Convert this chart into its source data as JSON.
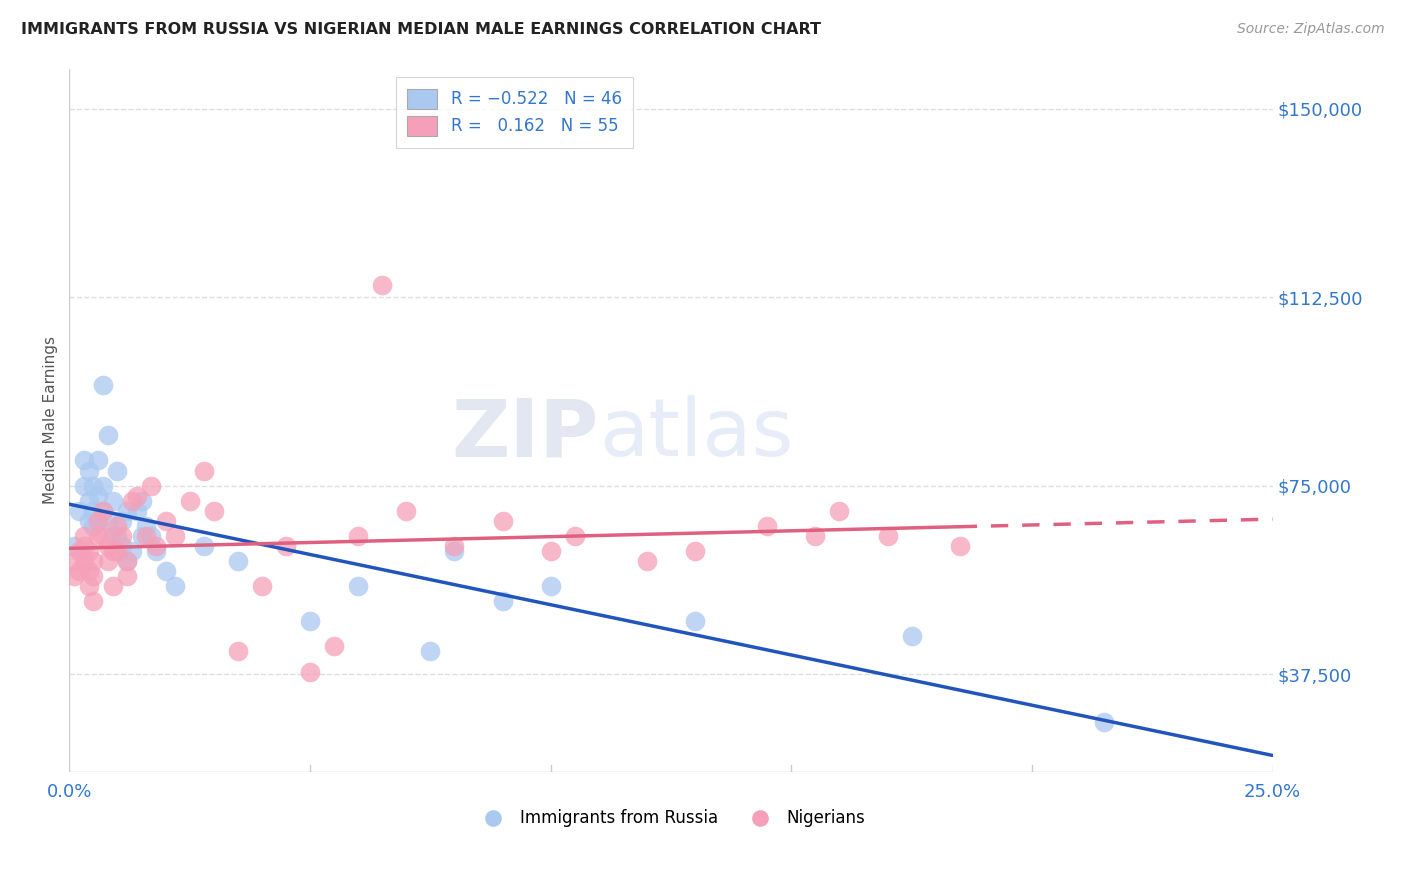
{
  "title": "IMMIGRANTS FROM RUSSIA VS NIGERIAN MEDIAN MALE EARNINGS CORRELATION CHART",
  "source": "Source: ZipAtlas.com",
  "ylabel": "Median Male Earnings",
  "ytick_labels": [
    "$37,500",
    "$75,000",
    "$112,500",
    "$150,000"
  ],
  "ytick_values": [
    37500,
    75000,
    112500,
    150000
  ],
  "xmin": 0.0,
  "xmax": 0.25,
  "ymin": 18000,
  "ymax": 158000,
  "legend_label1": "Immigrants from Russia",
  "legend_label2": "Nigerians",
  "blue_color": "#aac8f0",
  "pink_color": "#f5a0b8",
  "blue_line_color": "#2255bb",
  "pink_line_color": "#e06080",
  "title_color": "#222222",
  "axis_label_color": "#3377cc",
  "background_color": "#ffffff",
  "grid_color": "#dddddd",
  "russia_x": [
    0.001,
    0.002,
    0.003,
    0.003,
    0.004,
    0.004,
    0.004,
    0.005,
    0.005,
    0.005,
    0.006,
    0.006,
    0.006,
    0.007,
    0.007,
    0.007,
    0.008,
    0.008,
    0.009,
    0.009,
    0.01,
    0.01,
    0.011,
    0.011,
    0.012,
    0.012,
    0.013,
    0.014,
    0.015,
    0.015,
    0.016,
    0.017,
    0.018,
    0.02,
    0.022,
    0.028,
    0.035,
    0.05,
    0.06,
    0.075,
    0.08,
    0.09,
    0.1,
    0.13,
    0.175,
    0.215
  ],
  "russia_y": [
    63000,
    70000,
    75000,
    80000,
    72000,
    78000,
    68000,
    75000,
    70000,
    67000,
    73000,
    80000,
    68000,
    95000,
    75000,
    70000,
    85000,
    68000,
    72000,
    65000,
    78000,
    65000,
    68000,
    63000,
    70000,
    60000,
    62000,
    70000,
    72000,
    65000,
    67000,
    65000,
    62000,
    58000,
    55000,
    63000,
    60000,
    48000,
    55000,
    42000,
    62000,
    52000,
    55000,
    48000,
    45000,
    28000
  ],
  "nigeria_x": [
    0.001,
    0.001,
    0.002,
    0.002,
    0.003,
    0.003,
    0.003,
    0.004,
    0.004,
    0.004,
    0.005,
    0.005,
    0.005,
    0.006,
    0.006,
    0.007,
    0.007,
    0.008,
    0.008,
    0.009,
    0.009,
    0.01,
    0.01,
    0.011,
    0.012,
    0.012,
    0.013,
    0.014,
    0.016,
    0.017,
    0.018,
    0.02,
    0.022,
    0.025,
    0.028,
    0.03,
    0.035,
    0.04,
    0.045,
    0.05,
    0.055,
    0.06,
    0.065,
    0.07,
    0.08,
    0.09,
    0.1,
    0.105,
    0.12,
    0.13,
    0.145,
    0.155,
    0.16,
    0.17,
    0.185
  ],
  "nigeria_y": [
    60000,
    57000,
    62000,
    58000,
    63000,
    65000,
    60000,
    62000,
    58000,
    55000,
    60000,
    57000,
    52000,
    65000,
    68000,
    70000,
    65000,
    63000,
    60000,
    62000,
    55000,
    67000,
    62000,
    65000,
    57000,
    60000,
    72000,
    73000,
    65000,
    75000,
    63000,
    68000,
    65000,
    72000,
    78000,
    70000,
    42000,
    55000,
    63000,
    38000,
    43000,
    65000,
    115000,
    70000,
    63000,
    68000,
    62000,
    65000,
    60000,
    62000,
    67000,
    65000,
    70000,
    65000,
    63000
  ]
}
